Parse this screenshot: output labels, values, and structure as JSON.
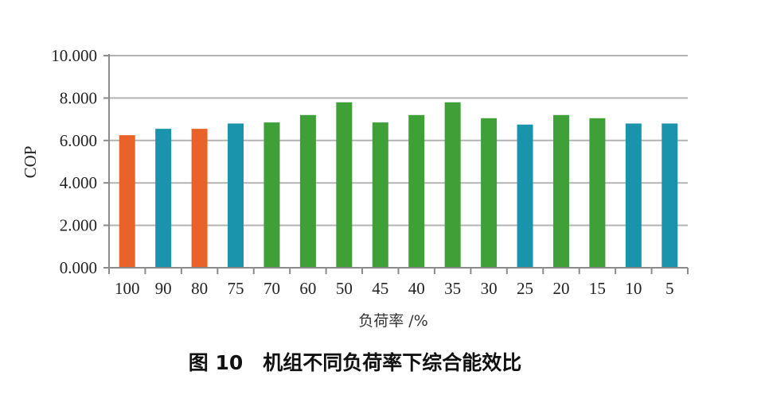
{
  "caption": "图 10　机组不同负荷率下综合能效比",
  "colors": {
    "orange": "#E8622A",
    "teal": "#1A93AD",
    "green": "#3FA038",
    "grid": "#b3b3b3",
    "axis": "#8a8a8a"
  },
  "chart_data": {
    "type": "bar",
    "title": "",
    "xlabel": "负荷率 /%",
    "ylabel": "COP",
    "ylim": [
      0,
      10
    ],
    "yticks": [
      "0.000",
      "2.000",
      "4.000",
      "6.000",
      "8.000",
      "10.000"
    ],
    "ytick_values": [
      0,
      2,
      4,
      6,
      8,
      10
    ],
    "grid": true,
    "legend": "none",
    "categories": [
      "100",
      "90",
      "80",
      "75",
      "70",
      "60",
      "50",
      "45",
      "40",
      "35",
      "30",
      "25",
      "20",
      "15",
      "10",
      "5"
    ],
    "values": [
      6.25,
      6.55,
      6.55,
      6.8,
      6.85,
      7.2,
      7.8,
      6.85,
      7.2,
      7.8,
      7.05,
      6.75,
      7.2,
      7.05,
      6.8,
      6.8
    ],
    "bar_colors": [
      "orange",
      "teal",
      "orange",
      "teal",
      "green",
      "green",
      "green",
      "green",
      "green",
      "green",
      "green",
      "teal",
      "green",
      "green",
      "teal",
      "teal"
    ]
  }
}
